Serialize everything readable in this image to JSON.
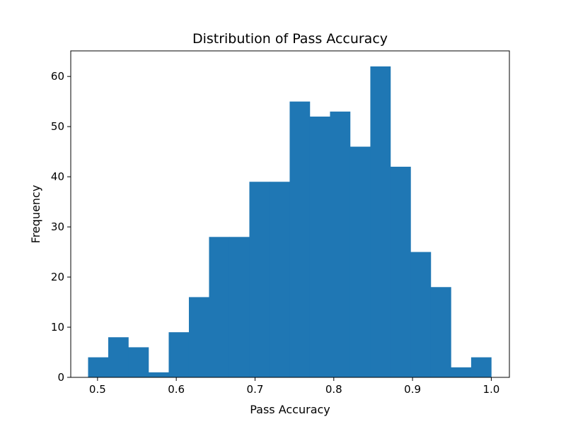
{
  "chart_data": {
    "type": "bar",
    "title": "Distribution of Pass Accuracy",
    "xlabel": "Pass Accuracy",
    "ylabel": "Frequency",
    "bin_start": 0.488,
    "bin_width": 0.0256,
    "values": [
      4,
      8,
      6,
      1,
      9,
      16,
      28,
      28,
      39,
      39,
      55,
      52,
      53,
      46,
      62,
      42,
      25,
      18,
      2,
      4
    ],
    "xlim": [
      0.466,
      1.023
    ],
    "ylim": [
      0,
      65.1
    ],
    "x_ticks": [
      0.5,
      0.6,
      0.7,
      0.8,
      0.9,
      1.0
    ],
    "x_tick_labels": [
      "0.5",
      "0.6",
      "0.7",
      "0.8",
      "0.9",
      "1.0"
    ],
    "y_ticks": [
      0,
      10,
      20,
      30,
      40,
      50,
      60
    ],
    "y_tick_labels": [
      "0",
      "10",
      "20",
      "30",
      "40",
      "50",
      "60"
    ],
    "bar_color": "#1f77b4",
    "grid": false,
    "legend": "none"
  }
}
